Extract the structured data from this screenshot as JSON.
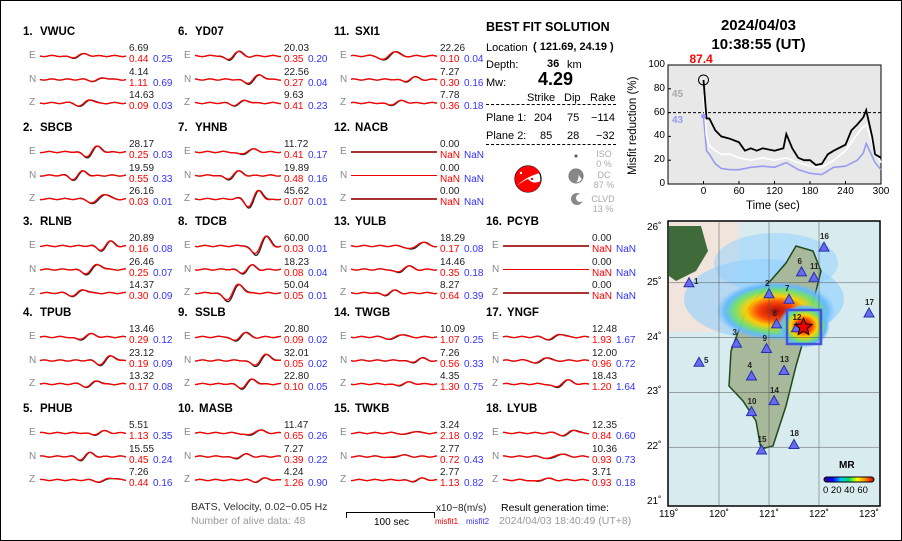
{
  "header": {
    "date": "2024/04/03",
    "time": "10:38:55  (UT)"
  },
  "solution": {
    "title": "BEST FIT SOLUTION",
    "location_label": "Location",
    "location_value": "( 121.69,  24.19 )",
    "depth_label": "Depth:",
    "depth_value": "36",
    "depth_unit": "km",
    "mw_label": "Mw:",
    "mw_value": "4.29",
    "columns": [
      "Strike",
      "Dip",
      "Rake"
    ],
    "planes": [
      {
        "label": "Plane 1:",
        "strike": "204",
        "dip": "75",
        "rake": "−114"
      },
      {
        "label": "Plane 2:",
        "strike": "85",
        "dip": "28",
        "rake": "−32"
      }
    ],
    "iso_label": "ISO",
    "iso_value": "0 %",
    "dc_label": "DC",
    "dc_value": "87 %",
    "clvd_label": "CLVD",
    "clvd_value": "13 %"
  },
  "stations": [
    {
      "id": "1.",
      "name": "VWUC",
      "c": [
        [
          "6.69",
          "0.44",
          "0.25"
        ],
        [
          "4.14",
          "1.11",
          "0.69"
        ],
        [
          "14.63",
          "0.09",
          "0.03"
        ]
      ]
    },
    {
      "id": "2.",
      "name": "SBCB",
      "c": [
        [
          "28.17",
          "0.25",
          "0.03"
        ],
        [
          "19.59",
          "0.55",
          "0.33"
        ],
        [
          "26.16",
          "0.03",
          "0.01"
        ]
      ]
    },
    {
      "id": "3.",
      "name": "RLNB",
      "c": [
        [
          "20.89",
          "0.16",
          "0.08"
        ],
        [
          "26.46",
          "0.25",
          "0.07"
        ],
        [
          "14.37",
          "0.30",
          "0.09"
        ]
      ]
    },
    {
      "id": "4.",
      "name": "TPUB",
      "c": [
        [
          "13.46",
          "0.29",
          "0.12"
        ],
        [
          "23.12",
          "0.19",
          "0.09"
        ],
        [
          "13.32",
          "0.17",
          "0.08"
        ]
      ]
    },
    {
      "id": "5.",
      "name": "PHUB",
      "c": [
        [
          "5.51",
          "1.13",
          "0.35"
        ],
        [
          "15.55",
          "0.45",
          "0.24"
        ],
        [
          "7.26",
          "0.44",
          "0.16"
        ]
      ]
    },
    {
      "id": "6.",
      "name": "YD07",
      "c": [
        [
          "20.03",
          "0.35",
          "0.20"
        ],
        [
          "22.56",
          "0.27",
          "0.04"
        ],
        [
          "9.63",
          "0.41",
          "0.23"
        ]
      ]
    },
    {
      "id": "7.",
      "name": "YHNB",
      "c": [
        [
          "11.72",
          "0.41",
          "0.17"
        ],
        [
          "19.89",
          "0.48",
          "0.16"
        ],
        [
          "45.62",
          "0.07",
          "0.01"
        ]
      ]
    },
    {
      "id": "8.",
      "name": "TDCB",
      "c": [
        [
          "60.00",
          "0.03",
          "0.01"
        ],
        [
          "18.23",
          "0.08",
          "0.04"
        ],
        [
          "50.04",
          "0.05",
          "0.01"
        ]
      ]
    },
    {
      "id": "9.",
      "name": "SSLB",
      "c": [
        [
          "20.80",
          "0.09",
          "0.02"
        ],
        [
          "32.01",
          "0.05",
          "0.02"
        ],
        [
          "22.80",
          "0.10",
          "0.05"
        ]
      ]
    },
    {
      "id": "10.",
      "name": "MASB",
      "c": [
        [
          "11.47",
          "0.65",
          "0.26"
        ],
        [
          "7.27",
          "0.39",
          "0.22"
        ],
        [
          "4.24",
          "1.26",
          "0.90"
        ]
      ]
    },
    {
      "id": "11.",
      "name": "SXI1",
      "c": [
        [
          "22.26",
          "0.10",
          "0.04"
        ],
        [
          "7.27",
          "0.30",
          "0.16"
        ],
        [
          "7.78",
          "0.36",
          "0.18"
        ]
      ]
    },
    {
      "id": "12.",
      "name": "NACB",
      "c": [
        [
          "0.00",
          "NaN",
          "NaN"
        ],
        [
          "0.00",
          "NaN",
          "NaN"
        ],
        [
          "0.00",
          "NaN",
          "NaN"
        ]
      ]
    },
    {
      "id": "13.",
      "name": "YULB",
      "c": [
        [
          "18.29",
          "0.17",
          "0.08"
        ],
        [
          "14.46",
          "0.35",
          "0.18"
        ],
        [
          "8.27",
          "0.64",
          "0.39"
        ]
      ]
    },
    {
      "id": "14.",
      "name": "TWGB",
      "c": [
        [
          "10.09",
          "1.07",
          "0.25"
        ],
        [
          "7.26",
          "0.56",
          "0.33"
        ],
        [
          "4.35",
          "1.30",
          "0.75"
        ]
      ]
    },
    {
      "id": "15.",
      "name": "TWKB",
      "c": [
        [
          "3.24",
          "2.18",
          "0.92"
        ],
        [
          "2.77",
          "0.72",
          "0.43"
        ],
        [
          "2.77",
          "1.13",
          "0.82"
        ]
      ]
    },
    {
      "id": "16.",
      "name": "PCYB",
      "c": [
        [
          "0.00",
          "NaN",
          "NaN"
        ],
        [
          "0.00",
          "NaN",
          "NaN"
        ],
        [
          "0.00",
          "NaN",
          "NaN"
        ]
      ]
    },
    {
      "id": "17.",
      "name": "YNGF",
      "c": [
        [
          "12.48",
          "1.93",
          "1.67"
        ],
        [
          "12.00",
          "0.96",
          "0.72"
        ],
        [
          "18.43",
          "1.20",
          "1.64"
        ]
      ]
    },
    {
      "id": "18.",
      "name": "LYUB",
      "c": [
        [
          "12.35",
          "0.84",
          "0.60"
        ],
        [
          "10.36",
          "0.93",
          "0.73"
        ],
        [
          "3.71",
          "0.93",
          "0.18"
        ]
      ]
    }
  ],
  "components": [
    "E",
    "N",
    "Z"
  ],
  "footer": {
    "info": "BATS, Velocity, 0.02−0.05 Hz",
    "alive": "Number of alive data: 48",
    "scale_label": "100 sec",
    "unit": "x10−8(m/s)",
    "misfit1": "misfit1",
    "misfit2": "misfit2",
    "result_label": "Result generation time:",
    "result_time": "2024/04/03 18:40:49 (UT+8)"
  },
  "chart_data": {
    "type": "line",
    "xlabel": "Time (sec)",
    "ylabel": "Misfit reduction (%)",
    "xlim": [
      -60,
      300
    ],
    "ylim": [
      0,
      100
    ],
    "xticks": [
      "0",
      "60",
      "120",
      "180",
      "240",
      "300"
    ],
    "yticks": [
      "0",
      "20",
      "40",
      "60",
      "80",
      "100"
    ],
    "threshold": 60,
    "annotations": {
      "best": "87.4",
      "s2": "45",
      "s3": "43"
    },
    "series": [
      {
        "name": "best",
        "color": "#000000",
        "x": [
          0,
          5,
          10,
          20,
          30,
          45,
          60,
          70,
          80,
          90,
          100,
          120,
          135,
          140,
          150,
          160,
          170,
          180,
          190,
          200,
          210,
          220,
          240,
          250,
          260,
          270,
          275,
          285,
          290,
          300
        ],
        "y": [
          87.4,
          55,
          55,
          45,
          40,
          38,
          35,
          28,
          30,
          28,
          30,
          28,
          30,
          42,
          30,
          22,
          20,
          20,
          16,
          17,
          25,
          28,
          33,
          45,
          50,
          56,
          62,
          40,
          25,
          22
        ]
      },
      {
        "name": "mean",
        "color": "#ffffff",
        "x": [
          0,
          5,
          10,
          20,
          30,
          45,
          60,
          80,
          100,
          120,
          140,
          160,
          180,
          200,
          220,
          240,
          260,
          270,
          275,
          290,
          300
        ],
        "y": [
          75,
          40,
          32,
          28,
          25,
          25,
          22,
          20,
          22,
          20,
          22,
          18,
          15,
          14,
          20,
          28,
          42,
          48,
          50,
          28,
          18
        ]
      },
      {
        "name": "min",
        "color": "#9a9af0",
        "x": [
          0,
          5,
          10,
          20,
          30,
          45,
          60,
          80,
          100,
          120,
          140,
          160,
          180,
          200,
          220,
          240,
          260,
          270,
          275,
          290,
          300
        ],
        "y": [
          57,
          28,
          25,
          17,
          13,
          12,
          12,
          14,
          15,
          14,
          18,
          12,
          9,
          8,
          14,
          15,
          20,
          26,
          34,
          18,
          12
        ]
      }
    ]
  },
  "map": {
    "lon_ticks": [
      "119˚",
      "120˚",
      "121˚",
      "122˚",
      "123˚"
    ],
    "lat_ticks": [
      "26˚",
      "25˚",
      "24˚",
      "23˚",
      "22˚",
      "21˚"
    ],
    "colorbar_title": "MR",
    "colorbar_ticks": "0 20 40 60",
    "station_labels": [
      "1",
      "2",
      "3",
      "4",
      "5",
      "6",
      "7",
      "8",
      "9",
      "10",
      "11",
      "12",
      "13",
      "14",
      "15",
      "16",
      "17",
      "18"
    ]
  }
}
